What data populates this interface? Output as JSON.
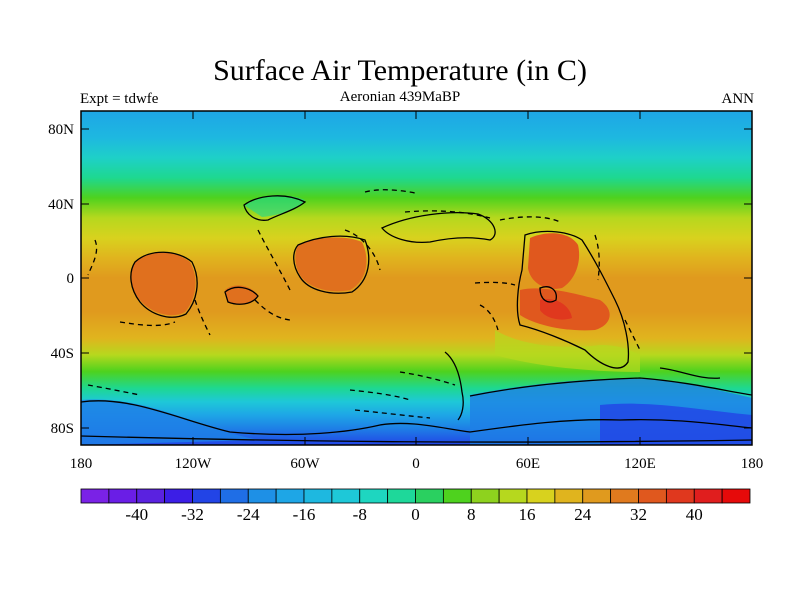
{
  "header": {
    "title": "Surface Air Temperature (in C)",
    "left_label": "Expt = tdwfe",
    "center_label": "Aeronian 439MaBP",
    "right_label": "ANN"
  },
  "map": {
    "x_ticks": [
      "180",
      "120W",
      "60W",
      "0",
      "60E",
      "120E",
      "180"
    ],
    "y_ticks": [
      "80N",
      "40N",
      "0",
      "40S",
      "80S"
    ]
  },
  "colorbar": {
    "labels": [
      "-40",
      "-32",
      "-24",
      "-16",
      "-8",
      "0",
      "8",
      "16",
      "24",
      "32",
      "40"
    ],
    "colors": [
      "#7a22e6",
      "#6a1ee6",
      "#5a22e0",
      "#3c1ee6",
      "#2244e6",
      "#1f6ee6",
      "#1e90e6",
      "#1ea6e6",
      "#1eb8e0",
      "#1ec8d8",
      "#1ed6c0",
      "#1ed89a",
      "#2ad060",
      "#4ed21e",
      "#8ed21e",
      "#b6d81e",
      "#d8d21e",
      "#e0b41e",
      "#e09a1e",
      "#e07a1e",
      "#e0581e",
      "#e0381e",
      "#e01e1e",
      "#e60a0a"
    ]
  }
}
